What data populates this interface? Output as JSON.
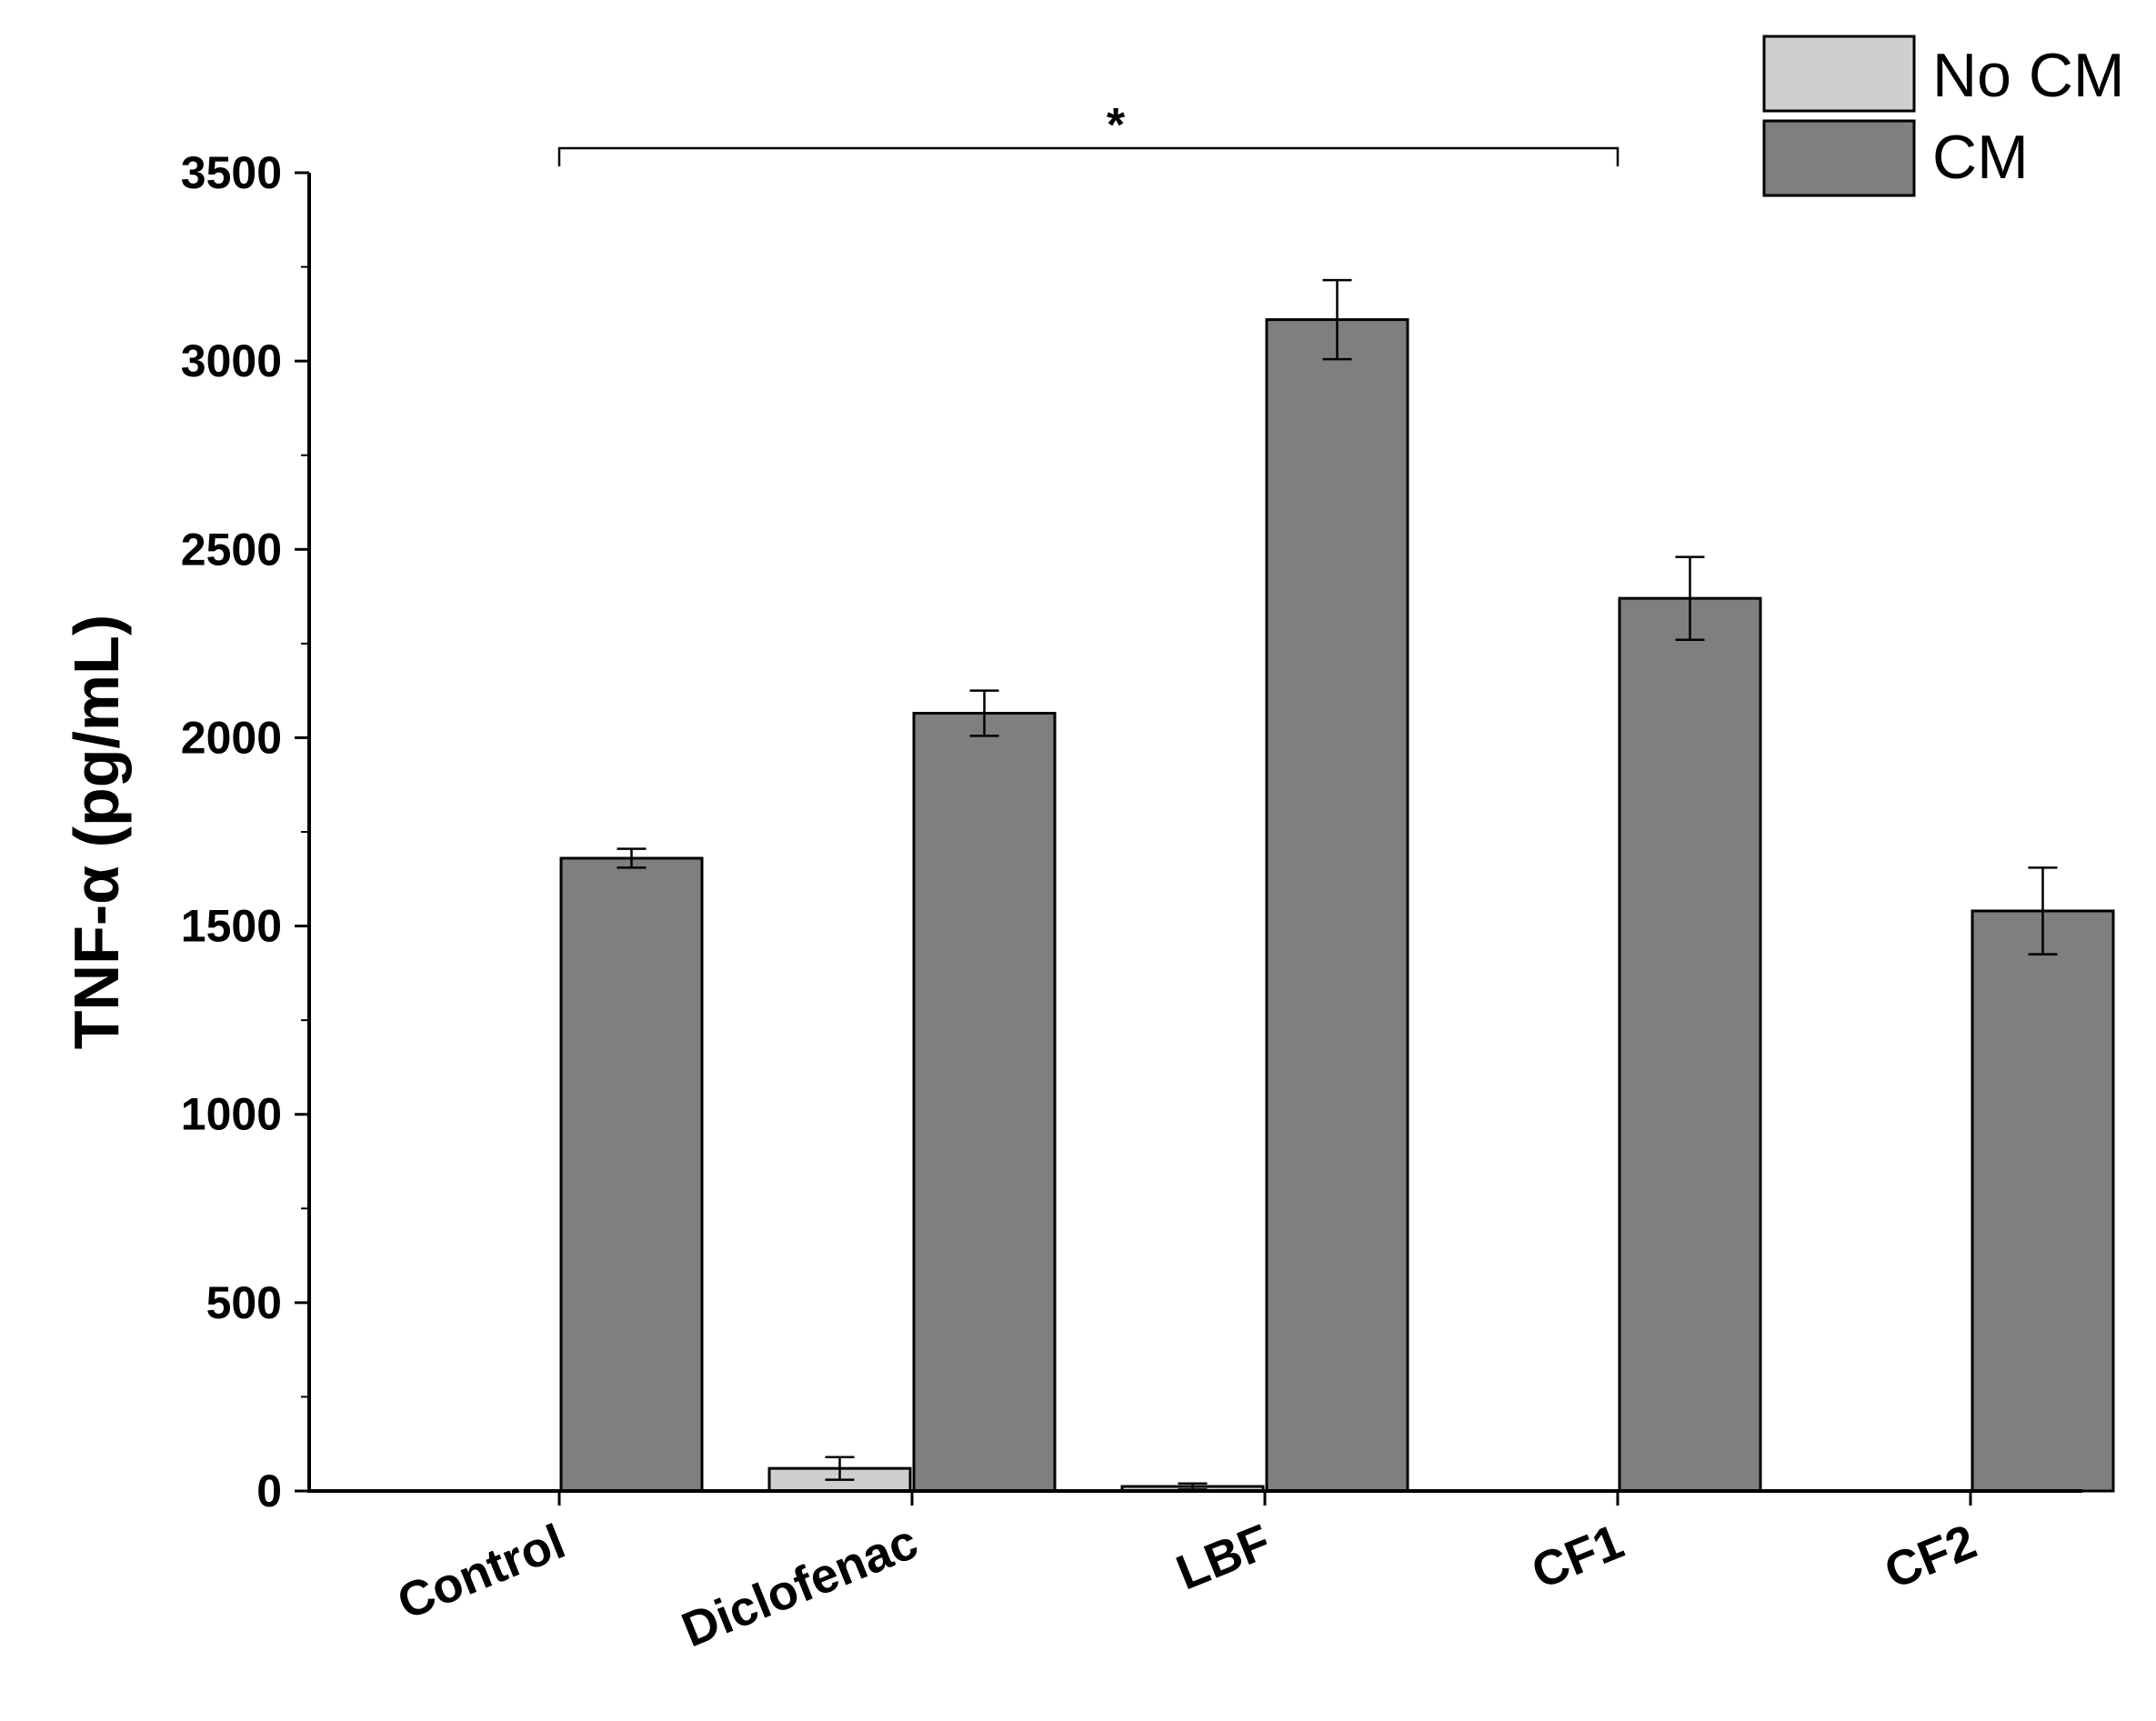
{
  "chart_data": {
    "type": "bar",
    "title": "",
    "xlabel": "",
    "ylabel": "TNF-α (pg/mL)",
    "ylim": [
      0,
      3500
    ],
    "yticks": [
      0,
      500,
      1000,
      1500,
      2000,
      2500,
      3000,
      3500
    ],
    "categories": [
      "Control",
      "Diclofenac",
      "LBF",
      "CF1",
      "CF2"
    ],
    "series": [
      {
        "name": "No CM",
        "color": "#cfcfcf",
        "values": [
          0,
          60,
          12,
          0,
          0
        ],
        "errors": [
          0,
          30,
          8,
          0,
          0
        ]
      },
      {
        "name": "CM",
        "color": "#7f7f7f",
        "values": [
          1680,
          2065,
          3110,
          2370,
          1540
        ],
        "errors": [
          25,
          60,
          105,
          110,
          115
        ]
      }
    ],
    "legend_position": "top-right",
    "grid": false,
    "annotations": [
      {
        "text": "*",
        "from_category": "Control",
        "to_category": "CF1"
      }
    ]
  }
}
